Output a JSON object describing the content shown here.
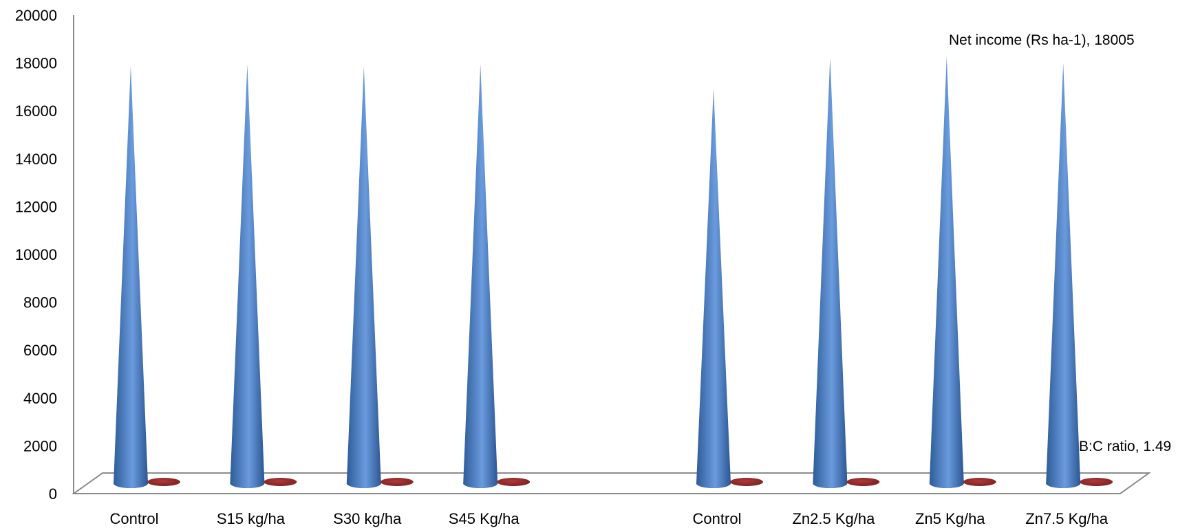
{
  "chart_data": {
    "type": "bar",
    "style": "3d-cone",
    "categories": [
      "Control",
      "S15 kg/ha",
      "S30 kg/ha",
      "S45 Kg/ha",
      "",
      "Control",
      "Zn2.5 Kg/ha",
      "Zn5 Kg/ha",
      "Zn7.5 Kg/ha"
    ],
    "series": [
      {
        "name": "Net income (Rs ha-1)",
        "color": "#4F81BD",
        "values": [
          17900,
          17950,
          17850,
          17950,
          null,
          16950,
          18250,
          18280,
          18005
        ]
      },
      {
        "name": "B:C ratio",
        "color": "#9B2C2C",
        "values": [
          1.46,
          1.47,
          1.46,
          1.47,
          null,
          1.42,
          1.48,
          1.49,
          1.49
        ]
      }
    ],
    "y_ticks": [
      "0",
      "2000",
      "4000",
      "6000",
      "8000",
      "10000",
      "12000",
      "14000",
      "16000",
      "18000",
      "20000"
    ],
    "ylim": [
      0,
      20000
    ],
    "grid": false,
    "legend": "none",
    "annotations": [
      {
        "text": "Net income (Rs ha-1), 18005",
        "series": 0,
        "index": 8
      },
      {
        "text": "B:C ratio, 1.49",
        "series": 1,
        "index": 8
      }
    ]
  }
}
